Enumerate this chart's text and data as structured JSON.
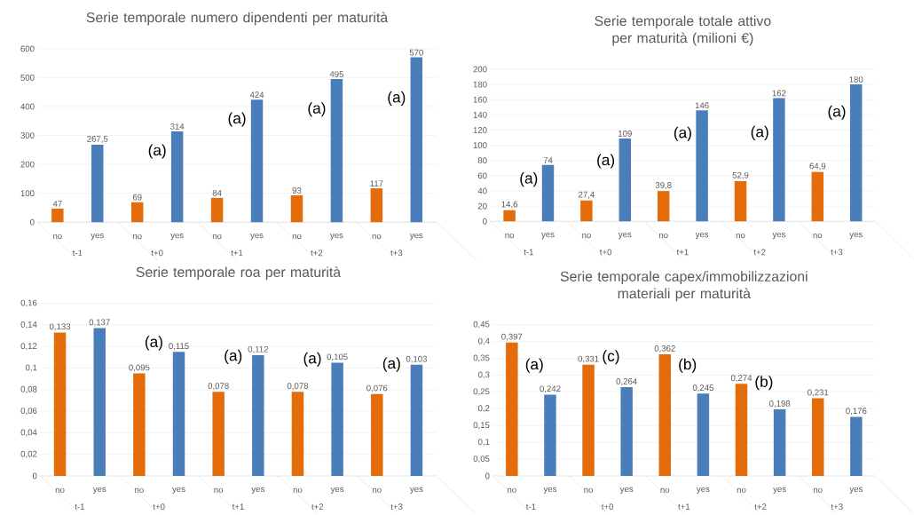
{
  "chart_data": [
    {
      "type": "bar",
      "title": "Serie temporale numero dipendenti per maturità",
      "categories": [
        "t-1",
        "t+0",
        "t+1",
        "t+2",
        "t+3"
      ],
      "series": [
        {
          "name": "no",
          "color": "#e46c0a",
          "values": [
            47,
            69,
            84,
            93,
            117
          ],
          "value_labels": [
            "47",
            "69",
            "84",
            "93",
            "117"
          ]
        },
        {
          "name": "yes",
          "color": "#4a7ebb",
          "values": [
            267.5,
            314,
            424,
            495,
            570
          ],
          "value_labels": [
            "267,5",
            "314",
            "424",
            "495",
            "570"
          ]
        }
      ],
      "ylim": [
        0,
        600
      ],
      "yticks": [
        0,
        100,
        200,
        300,
        400,
        500,
        600
      ],
      "grid": "y",
      "annotations": [
        "(a)",
        "(a)",
        "(a)",
        "(a)"
      ]
    },
    {
      "type": "bar",
      "title": "Serie temporale totale attivo per maturità (milioni €)",
      "categories": [
        "t-1",
        "t+0",
        "t+1",
        "t+2",
        "t+3"
      ],
      "series": [
        {
          "name": "no",
          "color": "#e46c0a",
          "values": [
            14.6,
            27.4,
            39.8,
            52.9,
            64.9
          ],
          "value_labels": [
            "14,6",
            "27,4",
            "39,8",
            "52,9",
            "64,9"
          ]
        },
        {
          "name": "yes",
          "color": "#4a7ebb",
          "values": [
            74,
            109,
            146,
            162,
            180
          ],
          "value_labels": [
            "74",
            "109",
            "146",
            "162",
            "180"
          ]
        }
      ],
      "ylim": [
        0,
        200
      ],
      "yticks": [
        0,
        20,
        40,
        60,
        80,
        100,
        120,
        140,
        160,
        180,
        200
      ],
      "grid": "y",
      "annotations": [
        "(a)",
        "(a)",
        "(a)",
        "(a)",
        "(a)"
      ]
    },
    {
      "type": "bar",
      "title": "Serie temporale roa per maturità",
      "categories": [
        "t-1",
        "t+0",
        "t+1",
        "t+2",
        "t+3"
      ],
      "series": [
        {
          "name": "no",
          "color": "#e46c0a",
          "values": [
            0.133,
            0.095,
            0.078,
            0.078,
            0.076
          ],
          "value_labels": [
            "0,133",
            "0,095",
            "0,078",
            "0,078",
            "0,076"
          ]
        },
        {
          "name": "yes",
          "color": "#4a7ebb",
          "values": [
            0.137,
            0.115,
            0.112,
            0.105,
            0.103
          ],
          "value_labels": [
            "0,137",
            "0,115",
            "0,112",
            "0,105",
            "0,103"
          ]
        }
      ],
      "ylim": [
        0,
        0.16
      ],
      "yticks": [
        0,
        {
          "value": 0.02,
          "label": "0,02"
        },
        {
          "value": 0.04,
          "label": "0,04"
        },
        {
          "value": 0.06,
          "label": "0,06"
        },
        {
          "value": 0.08,
          "label": "0,08"
        },
        {
          "value": 0.1,
          "label": "0,1"
        },
        {
          "value": 0.12,
          "label": "0,12"
        },
        {
          "value": 0.14,
          "label": "0,14"
        },
        {
          "value": 0.16,
          "label": "0,16"
        }
      ],
      "grid": "y",
      "annotations": [
        "(a)",
        "(a)",
        "(a)",
        "(a)"
      ]
    },
    {
      "type": "bar",
      "title": "Serie temporale capex/immobilizzazioni materiali per maturità",
      "categories": [
        "t-1",
        "t+0",
        "t+1",
        "t+2",
        "t+3"
      ],
      "series": [
        {
          "name": "no",
          "color": "#e46c0a",
          "values": [
            0.397,
            0.331,
            0.362,
            0.274,
            0.231
          ],
          "value_labels": [
            "0,397",
            "0,331",
            "0,362",
            "0,274",
            "0,231"
          ]
        },
        {
          "name": "yes",
          "color": "#4a7ebb",
          "values": [
            0.242,
            0.264,
            0.245,
            0.198,
            0.176
          ],
          "value_labels": [
            "0,242",
            "0,264",
            "0,245",
            "0,198",
            "0,176"
          ]
        }
      ],
      "ylim": [
        0,
        0.45
      ],
      "yticks": [
        0,
        {
          "value": 0.05,
          "label": "0,05"
        },
        {
          "value": 0.1,
          "label": "0,1"
        },
        {
          "value": 0.15,
          "label": "0,15"
        },
        {
          "value": 0.2,
          "label": "0,2"
        },
        {
          "value": 0.25,
          "label": "0,25"
        },
        {
          "value": 0.3,
          "label": "0,3"
        },
        {
          "value": 0.35,
          "label": "0,35"
        },
        {
          "value": 0.4,
          "label": "0,4"
        },
        {
          "value": 0.45,
          "label": "0,45"
        }
      ],
      "grid": "y",
      "annotations": [
        "(a)",
        "(c)",
        "(b)",
        "(b)"
      ]
    }
  ]
}
